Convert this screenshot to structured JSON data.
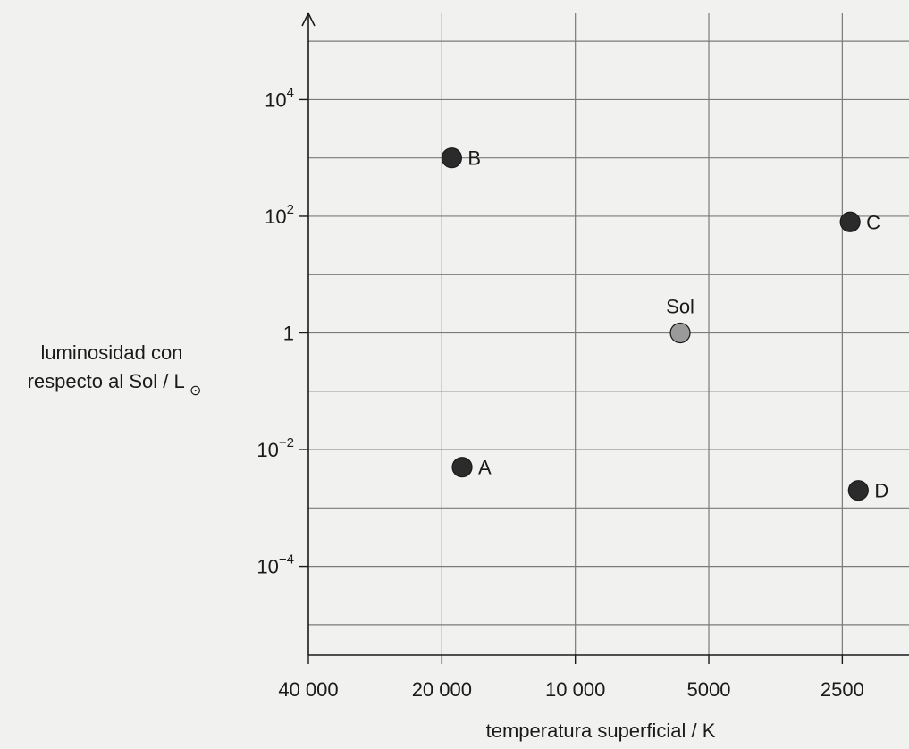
{
  "chart_data": {
    "type": "scatter",
    "title": "",
    "xlabel": "temperatura superficial / K",
    "ylabel_line1": "luminosidad con",
    "ylabel_line2": "respecto al Sol / L",
    "ylabel_symbol": "⊙",
    "x_scale": "log-reversed",
    "y_scale": "log",
    "xlim": [
      40000,
      1768
    ],
    "ylim": [
      3e-06,
      300000
    ],
    "grid": true,
    "x_ticks": [
      {
        "value": 40000,
        "label": "40 000"
      },
      {
        "value": 20000,
        "label": "20 000"
      },
      {
        "value": 10000,
        "label": "10 000"
      },
      {
        "value": 5000,
        "label": "5000"
      },
      {
        "value": 2500,
        "label": "2500"
      }
    ],
    "y_ticks": [
      {
        "value": 0.0001,
        "base": "10",
        "exp": "−4"
      },
      {
        "value": 0.01,
        "base": "10",
        "exp": "−2"
      },
      {
        "value": 1,
        "base": "1",
        "exp": ""
      },
      {
        "value": 100,
        "base": "10",
        "exp": "2"
      },
      {
        "value": 10000,
        "base": "10",
        "exp": "4"
      }
    ],
    "points": [
      {
        "label": "B",
        "x": 19000,
        "y": 1000,
        "color": "#2b2b2b",
        "label_side": "right"
      },
      {
        "label": "C",
        "x": 2400,
        "y": 80,
        "color": "#2b2b2b",
        "label_side": "right"
      },
      {
        "label": "Sol",
        "x": 5800,
        "y": 1,
        "color": "#9a9a9a",
        "label_side": "above"
      },
      {
        "label": "A",
        "x": 18000,
        "y": 0.005,
        "color": "#2b2b2b",
        "label_side": "right"
      },
      {
        "label": "D",
        "x": 2300,
        "y": 0.002,
        "color": "#2b2b2b",
        "label_side": "right"
      }
    ]
  }
}
